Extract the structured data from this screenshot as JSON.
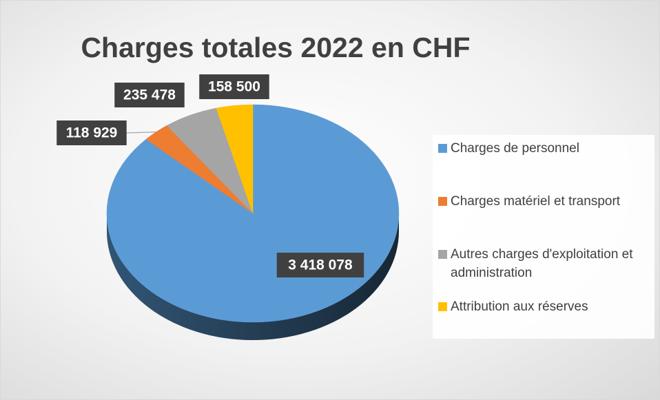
{
  "chart_data": {
    "type": "pie",
    "title": "Charges totales 2022 en CHF",
    "categories": [
      "Charges de personnel",
      "Charges matériel et transport",
      "Autres charges d'exploitation et administration",
      "Attribution aux réserves"
    ],
    "values": [
      3418078,
      118929,
      235478,
      158500
    ],
    "value_labels": [
      "3 418 078",
      "118 929",
      "235 478",
      "158 500"
    ],
    "colors": [
      "#5b9bd5",
      "#ed7d31",
      "#a5a5a5",
      "#ffc000"
    ],
    "legend": "right"
  }
}
